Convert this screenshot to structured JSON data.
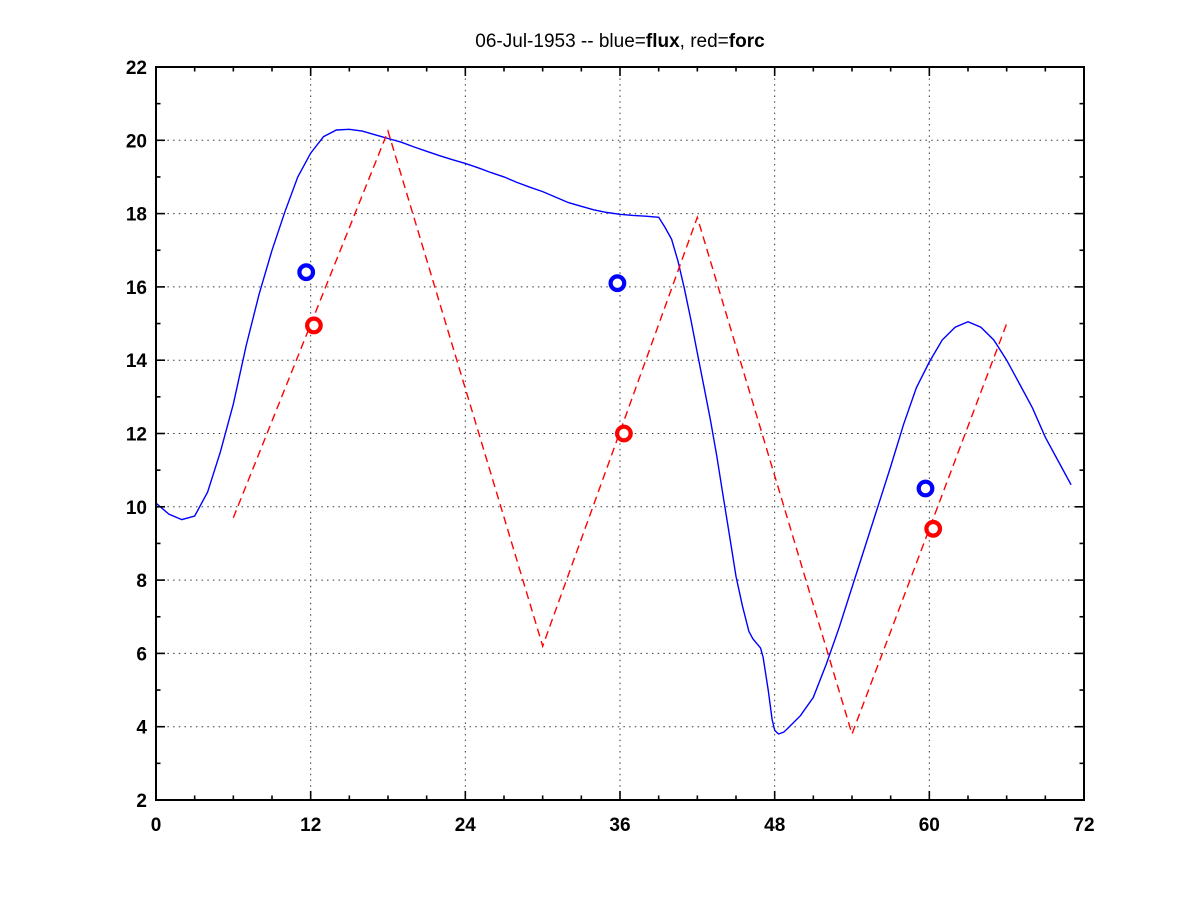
{
  "figure": {
    "background": "#ffffff"
  },
  "chart_data": {
    "type": "line",
    "title": "06-Jul-1953 -- blue=flux, red=forc",
    "title_parts": [
      {
        "text": "06-Jul-1953 -- blue=",
        "bold": false
      },
      {
        "text": "flux",
        "bold": true
      },
      {
        "text": ", red=",
        "bold": false
      },
      {
        "text": "forc",
        "bold": true
      }
    ],
    "xlabel": "",
    "ylabel": "",
    "xlim": [
      0,
      72
    ],
    "ylim": [
      2,
      22
    ],
    "xticks": [
      0,
      12,
      24,
      36,
      48,
      60,
      72
    ],
    "yticks": [
      2,
      4,
      6,
      8,
      10,
      12,
      14,
      16,
      18,
      20,
      22
    ],
    "x_minor_step": 3,
    "y_minor_step": 1,
    "grid": "dotted-at-major-ticks",
    "colors": {
      "flux": "#0000ff",
      "forc": "#ff0000",
      "axes": "#000000"
    },
    "series": [
      {
        "name": "flux",
        "style": "solid",
        "color": "#0000ff",
        "points": [
          [
            0,
            10.1
          ],
          [
            1,
            9.8
          ],
          [
            2,
            9.65
          ],
          [
            3,
            9.75
          ],
          [
            4,
            10.4
          ],
          [
            5,
            11.5
          ],
          [
            6,
            12.8
          ],
          [
            7,
            14.4
          ],
          [
            8,
            15.8
          ],
          [
            9,
            17.0
          ],
          [
            10,
            18.05
          ],
          [
            11,
            19.0
          ],
          [
            12,
            19.65
          ],
          [
            13,
            20.1
          ],
          [
            14,
            20.28
          ],
          [
            15,
            20.3
          ],
          [
            16,
            20.25
          ],
          [
            17,
            20.15
          ],
          [
            18,
            20.05
          ],
          [
            19,
            19.95
          ],
          [
            20,
            19.82
          ],
          [
            21,
            19.7
          ],
          [
            22,
            19.58
          ],
          [
            23,
            19.47
          ],
          [
            24,
            19.37
          ],
          [
            25,
            19.25
          ],
          [
            26,
            19.12
          ],
          [
            27,
            19.0
          ],
          [
            28,
            18.85
          ],
          [
            29,
            18.72
          ],
          [
            30,
            18.6
          ],
          [
            31,
            18.45
          ],
          [
            32,
            18.3
          ],
          [
            33,
            18.2
          ],
          [
            34,
            18.1
          ],
          [
            35,
            18.03
          ],
          [
            36,
            17.98
          ],
          [
            37,
            17.95
          ],
          [
            38,
            17.93
          ],
          [
            39,
            17.9
          ],
          [
            39.5,
            17.62
          ],
          [
            40,
            17.3
          ],
          [
            40.5,
            16.7
          ],
          [
            41,
            15.95
          ],
          [
            41.5,
            15.1
          ],
          [
            42,
            14.2
          ],
          [
            42.5,
            13.3
          ],
          [
            43,
            12.4
          ],
          [
            43.5,
            11.4
          ],
          [
            44,
            10.3
          ],
          [
            44.5,
            9.2
          ],
          [
            45,
            8.1
          ],
          [
            45.5,
            7.3
          ],
          [
            46,
            6.6
          ],
          [
            46.3,
            6.4
          ],
          [
            46.9,
            6.15
          ],
          [
            47.1,
            5.9
          ],
          [
            47.5,
            5.0
          ],
          [
            47.8,
            4.2
          ],
          [
            48,
            3.9
          ],
          [
            48.3,
            3.8
          ],
          [
            48.7,
            3.85
          ],
          [
            49,
            3.95
          ],
          [
            50,
            4.3
          ],
          [
            51,
            4.8
          ],
          [
            52,
            5.7
          ],
          [
            53,
            6.7
          ],
          [
            54,
            7.8
          ],
          [
            55,
            8.9
          ],
          [
            56,
            10.0
          ],
          [
            57,
            11.1
          ],
          [
            58,
            12.25
          ],
          [
            59,
            13.25
          ],
          [
            60,
            13.95
          ],
          [
            61,
            14.55
          ],
          [
            62,
            14.9
          ],
          [
            63,
            15.05
          ],
          [
            64,
            14.9
          ],
          [
            65,
            14.55
          ],
          [
            66,
            14.0
          ],
          [
            67,
            13.35
          ],
          [
            68,
            12.7
          ],
          [
            69,
            11.9
          ],
          [
            70,
            11.25
          ],
          [
            71,
            10.6
          ]
        ]
      },
      {
        "name": "forc",
        "style": "dashed",
        "color": "#ff0000",
        "points": [
          [
            6,
            9.7
          ],
          [
            18,
            20.25
          ],
          [
            30,
            6.2
          ],
          [
            42,
            17.9
          ],
          [
            54,
            3.8
          ],
          [
            66,
            15.0
          ]
        ]
      }
    ],
    "markers": [
      {
        "name": "flux-markers",
        "shape": "circle",
        "color": "#0000ff",
        "points": [
          [
            11.65,
            16.4
          ],
          [
            35.8,
            16.1
          ],
          [
            59.7,
            10.5
          ]
        ]
      },
      {
        "name": "forc-markers",
        "shape": "circle",
        "color": "#ff0000",
        "points": [
          [
            12.25,
            14.95
          ],
          [
            36.3,
            12.0
          ],
          [
            60.3,
            9.4
          ]
        ]
      }
    ]
  }
}
